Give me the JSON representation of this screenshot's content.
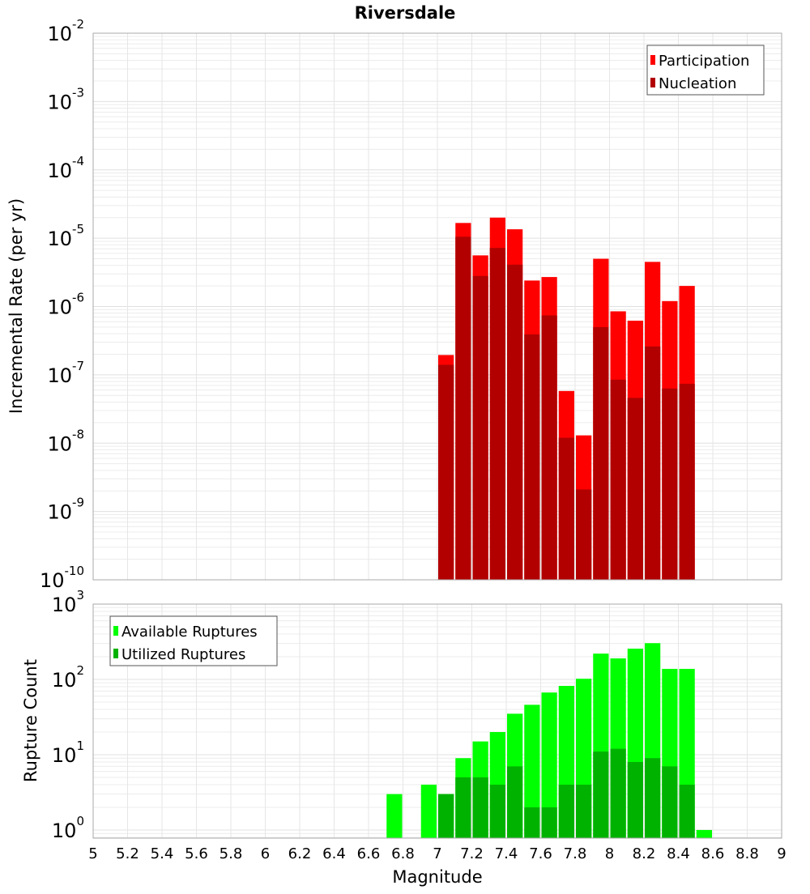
{
  "chart_data": [
    {
      "type": "bar",
      "title": "Riversdale",
      "xlabel": "Magnitude",
      "ylabel": "Incremental Rate (per yr)",
      "yscale": "log",
      "ylim": [
        1e-10,
        0.01
      ],
      "xlim": [
        5,
        9
      ],
      "bin_width": 0.1,
      "grid": true,
      "legend_placement": "top-right",
      "x": [
        7.05,
        7.15,
        7.25,
        7.35,
        7.45,
        7.55,
        7.65,
        7.75,
        7.85,
        7.95,
        8.05,
        8.15,
        8.25,
        8.35,
        8.45
      ],
      "series": [
        {
          "name": "Participation",
          "color": "#ff0000",
          "values": [
            1.95e-07,
            1.67e-05,
            5.6e-06,
            2e-05,
            1.35e-05,
            2.4e-06,
            2.7e-06,
            5.8e-08,
            1.3e-08,
            5e-06,
            8.5e-07,
            6.2e-07,
            4.5e-06,
            1.2e-06,
            2e-06
          ]
        },
        {
          "name": "Nucleation",
          "color": "#b20000",
          "values": [
            1.4e-07,
            1.05e-05,
            2.8e-06,
            7.2e-06,
            4.1e-06,
            3.9e-07,
            7.4e-07,
            1.2e-08,
            2.1e-09,
            5e-07,
            8.5e-08,
            4.6e-08,
            2.6e-07,
            6.3e-08,
            7.4e-08
          ]
        }
      ],
      "ytick_exponents": [
        "-2",
        "-3",
        "-4",
        "-5",
        "-6",
        "-7",
        "-8",
        "-9",
        "-10"
      ]
    },
    {
      "type": "bar",
      "xlabel": "Magnitude",
      "ylabel": "Rupture Count",
      "yscale": "log",
      "ylim": [
        0.78,
        1000
      ],
      "xlim": [
        5,
        9
      ],
      "bin_width": 0.1,
      "grid": true,
      "legend_placement": "top-left",
      "x": [
        6.75,
        6.85,
        6.95,
        7.05,
        7.15,
        7.25,
        7.35,
        7.45,
        7.55,
        7.65,
        7.75,
        7.85,
        7.95,
        8.05,
        8.15,
        8.25,
        8.35,
        8.45,
        8.55
      ],
      "series": [
        {
          "name": "Available Ruptures",
          "color": "#00ff00",
          "values": [
            3,
            0,
            4,
            3,
            9,
            15,
            20,
            35,
            46,
            67,
            82,
            102,
            220,
            190,
            256,
            303,
            138,
            138,
            1
          ]
        },
        {
          "name": "Utilized Ruptures",
          "color": "#00b200",
          "values": [
            0,
            0,
            0,
            3,
            5,
            5,
            4,
            7,
            2,
            2,
            4,
            4,
            11,
            12,
            8,
            9,
            7,
            4,
            0
          ]
        }
      ],
      "ytick_exponents": [
        "3",
        "2",
        "1",
        "0"
      ],
      "xticks": [
        "5",
        "5.2",
        "5.4",
        "5.6",
        "5.8",
        "6",
        "6.2",
        "6.4",
        "6.6",
        "6.8",
        "7",
        "7.2",
        "7.4",
        "7.6",
        "7.8",
        "8",
        "8.2",
        "8.4",
        "8.6",
        "8.8",
        "9"
      ]
    }
  ]
}
